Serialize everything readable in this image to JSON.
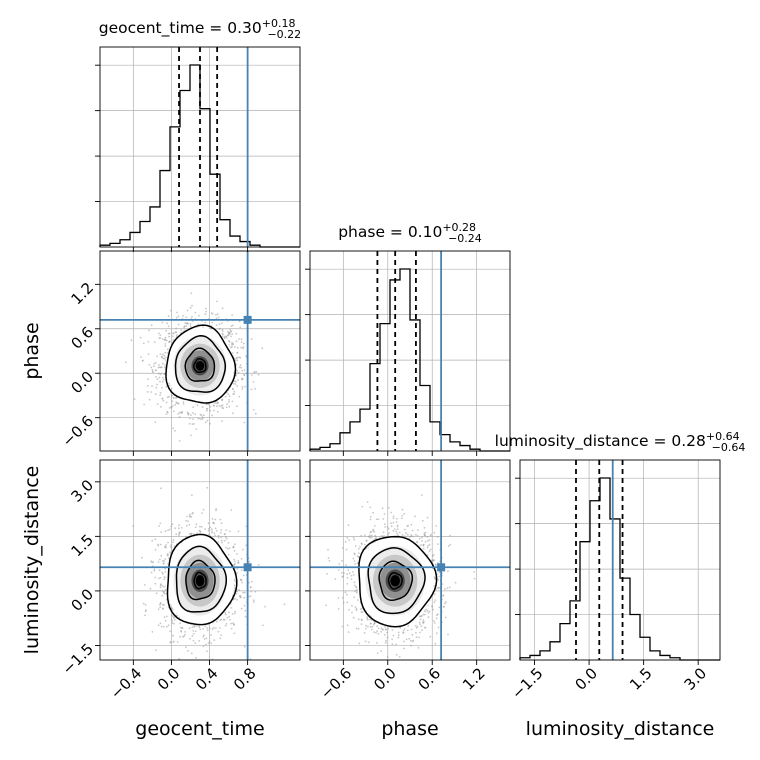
{
  "chart_data": {
    "type": "corner",
    "parameters": [
      "geocent_time",
      "phase",
      "luminosity_distance"
    ],
    "axis_labels": [
      "geocent_time",
      "phase",
      "luminosity_distance"
    ],
    "ranges": [
      [
        -0.75,
        1.35
      ],
      [
        -1.05,
        1.65
      ],
      [
        -1.9,
        3.6
      ]
    ],
    "truths": [
      0.8,
      0.72,
      0.65
    ],
    "truth_color": "#4682b4",
    "ticks": {
      "geocent_time": [
        {
          "v": -0.4,
          "label": "−0.4"
        },
        {
          "v": 0.0,
          "label": "0.0"
        },
        {
          "v": 0.4,
          "label": "0.4"
        },
        {
          "v": 0.8,
          "label": "0.8"
        }
      ],
      "phase": [
        {
          "v": -0.6,
          "label": "−0.6"
        },
        {
          "v": 0.0,
          "label": "0.0"
        },
        {
          "v": 0.6,
          "label": "0.6"
        },
        {
          "v": 1.2,
          "label": "1.2"
        }
      ],
      "luminosity_distance": [
        {
          "v": -1.5,
          "label": "−1.5"
        },
        {
          "v": 0.0,
          "label": "0.0"
        },
        {
          "v": 1.5,
          "label": "1.5"
        },
        {
          "v": 3.0,
          "label": "3.0"
        }
      ]
    },
    "titles": [
      {
        "name": "geocent_time",
        "median": "0.30",
        "plus": "+0.18",
        "minus": "−0.22"
      },
      {
        "name": "phase",
        "median": "0.10",
        "plus": "+0.28",
        "minus": "−0.24"
      },
      {
        "name": "luminosity_distance",
        "median": "0.28",
        "plus": "+0.64",
        "minus": "−0.64"
      }
    ],
    "quantiles": [
      [
        0.08,
        0.3,
        0.48
      ],
      [
        -0.14,
        0.1,
        0.38
      ],
      [
        -0.36,
        0.28,
        0.92
      ]
    ],
    "histograms": [
      {
        "edges_from": -0.75,
        "bin_width": 0.105,
        "counts": [
          1,
          2,
          4,
          8,
          14,
          22,
          42,
          66,
          86,
          100,
          76,
          40,
          15,
          6,
          3,
          1,
          0,
          0,
          0,
          0
        ]
      },
      {
        "edges_from": -1.05,
        "bin_width": 0.135,
        "counts": [
          1,
          2,
          4,
          10,
          16,
          23,
          48,
          70,
          94,
          100,
          72,
          36,
          16,
          9,
          5,
          3,
          1,
          0,
          0,
          0
        ]
      },
      {
        "edges_from": -1.9,
        "bin_width": 0.275,
        "counts": [
          1,
          2,
          4,
          8,
          16,
          26,
          52,
          70,
          80,
          62,
          36,
          20,
          10,
          4,
          2,
          1,
          0,
          0,
          0,
          0
        ]
      }
    ],
    "joint": [
      {
        "row": "phase",
        "col": "geocent_time",
        "center": [
          0.3,
          0.1
        ],
        "sigma": [
          0.18,
          0.26
        ]
      },
      {
        "row": "luminosity_distance",
        "col": "geocent_time",
        "center": [
          0.3,
          0.28
        ],
        "sigma": [
          0.18,
          0.62
        ]
      },
      {
        "row": "luminosity_distance",
        "col": "phase",
        "center": [
          0.1,
          0.28
        ],
        "sigma": [
          0.26,
          0.62
        ]
      }
    ],
    "grid": true
  }
}
